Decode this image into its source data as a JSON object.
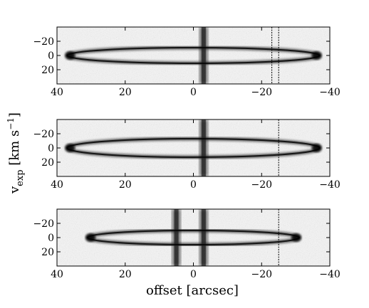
{
  "chart_data": {
    "type": "heatmap",
    "xlabel": "offset [arcsec]",
    "ylabel_main": "v",
    "ylabel_sub": "exp",
    "ylabel_unit_open": " [km s",
    "ylabel_unit_exp": "−1",
    "ylabel_unit_close": "]",
    "colormap": "greyscale (white = low, black = high)",
    "xlim": [
      40,
      -40
    ],
    "ylim": [
      -40,
      40
    ],
    "x_ticks": [
      40,
      20,
      0,
      -20,
      -40
    ],
    "y_ticks": [
      -20,
      0,
      20
    ],
    "x_tick_labels": [
      "40",
      "20",
      "0",
      "−20",
      "−40"
    ],
    "y_tick_labels": [
      "−20",
      "0",
      "20"
    ],
    "panels": [
      {
        "ellipse_center_offset": 0,
        "ellipse_half_width_arcsec": 37,
        "ellipse_half_height_kms": 11,
        "vertical_bands": [
          -3
        ],
        "vertical_lines": [
          -25,
          -23
        ]
      },
      {
        "ellipse_center_offset": 0,
        "ellipse_half_width_arcsec": 37,
        "ellipse_half_height_kms": 13,
        "vertical_bands": [
          -3
        ],
        "vertical_lines": [
          -25
        ]
      },
      {
        "ellipse_center_offset": 0,
        "ellipse_half_width_arcsec": 31,
        "ellipse_half_height_kms": 10,
        "vertical_bands": [
          -3,
          5
        ],
        "vertical_lines": [
          -25
        ]
      }
    ]
  }
}
